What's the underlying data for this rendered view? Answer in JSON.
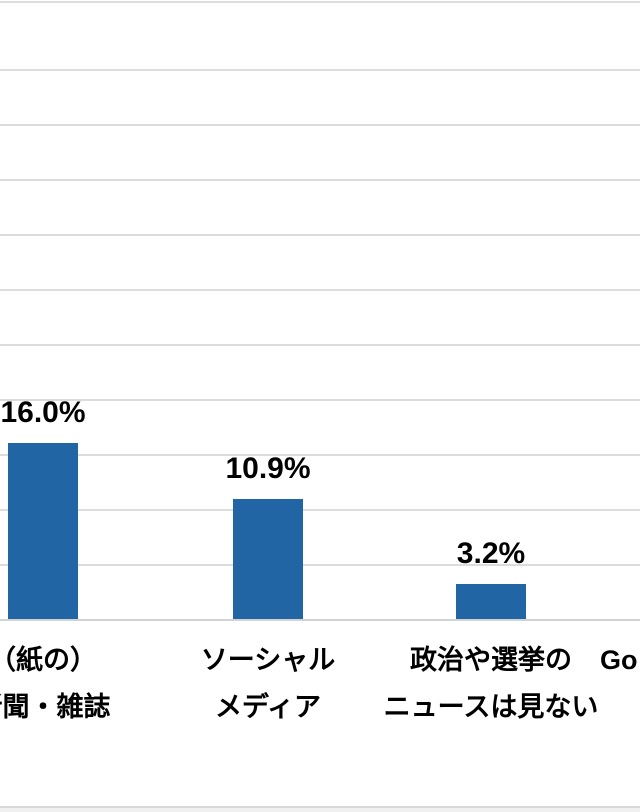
{
  "chart": {
    "background": "#ffffff",
    "bar_color": "#2165a4",
    "gridline_color": "#dcdcdc",
    "axis_line_color": "#d2d2d2",
    "text_color": "#000000",
    "top_border_color": "#dcdcdc",
    "bottom_edge_line_color": "#d8d8d8",
    "bottom_edge_fill_color": "#f0f0f0"
  },
  "chart_data": {
    "type": "bar",
    "title": "",
    "xlabel": "",
    "ylabel": "",
    "unit": "percent",
    "ylim": [
      0,
      50
    ],
    "grid": true,
    "grid_interval": 5,
    "legend": "none",
    "categories": [
      {
        "label_lines": [
          "（紙の）",
          "新聞・雑誌"
        ],
        "value": 16.0,
        "value_label": "16.0%"
      },
      {
        "label_lines": [
          "ソーシャル",
          "メディア"
        ],
        "value": 10.9,
        "value_label": "10.9%"
      },
      {
        "label_lines": [
          "政治や選挙の",
          "ニュースは見ない"
        ],
        "value": 3.2,
        "value_label": "3.2%"
      },
      {
        "label_lines": [
          "Go"
        ],
        "value": null,
        "value_label": "",
        "cropped_at_right_edge": true
      }
    ],
    "crop_note": "Chart is cropped: first category label cut at left edge, fourth category shows only 'Go' at right edge, no y-axis tick labels visible."
  }
}
